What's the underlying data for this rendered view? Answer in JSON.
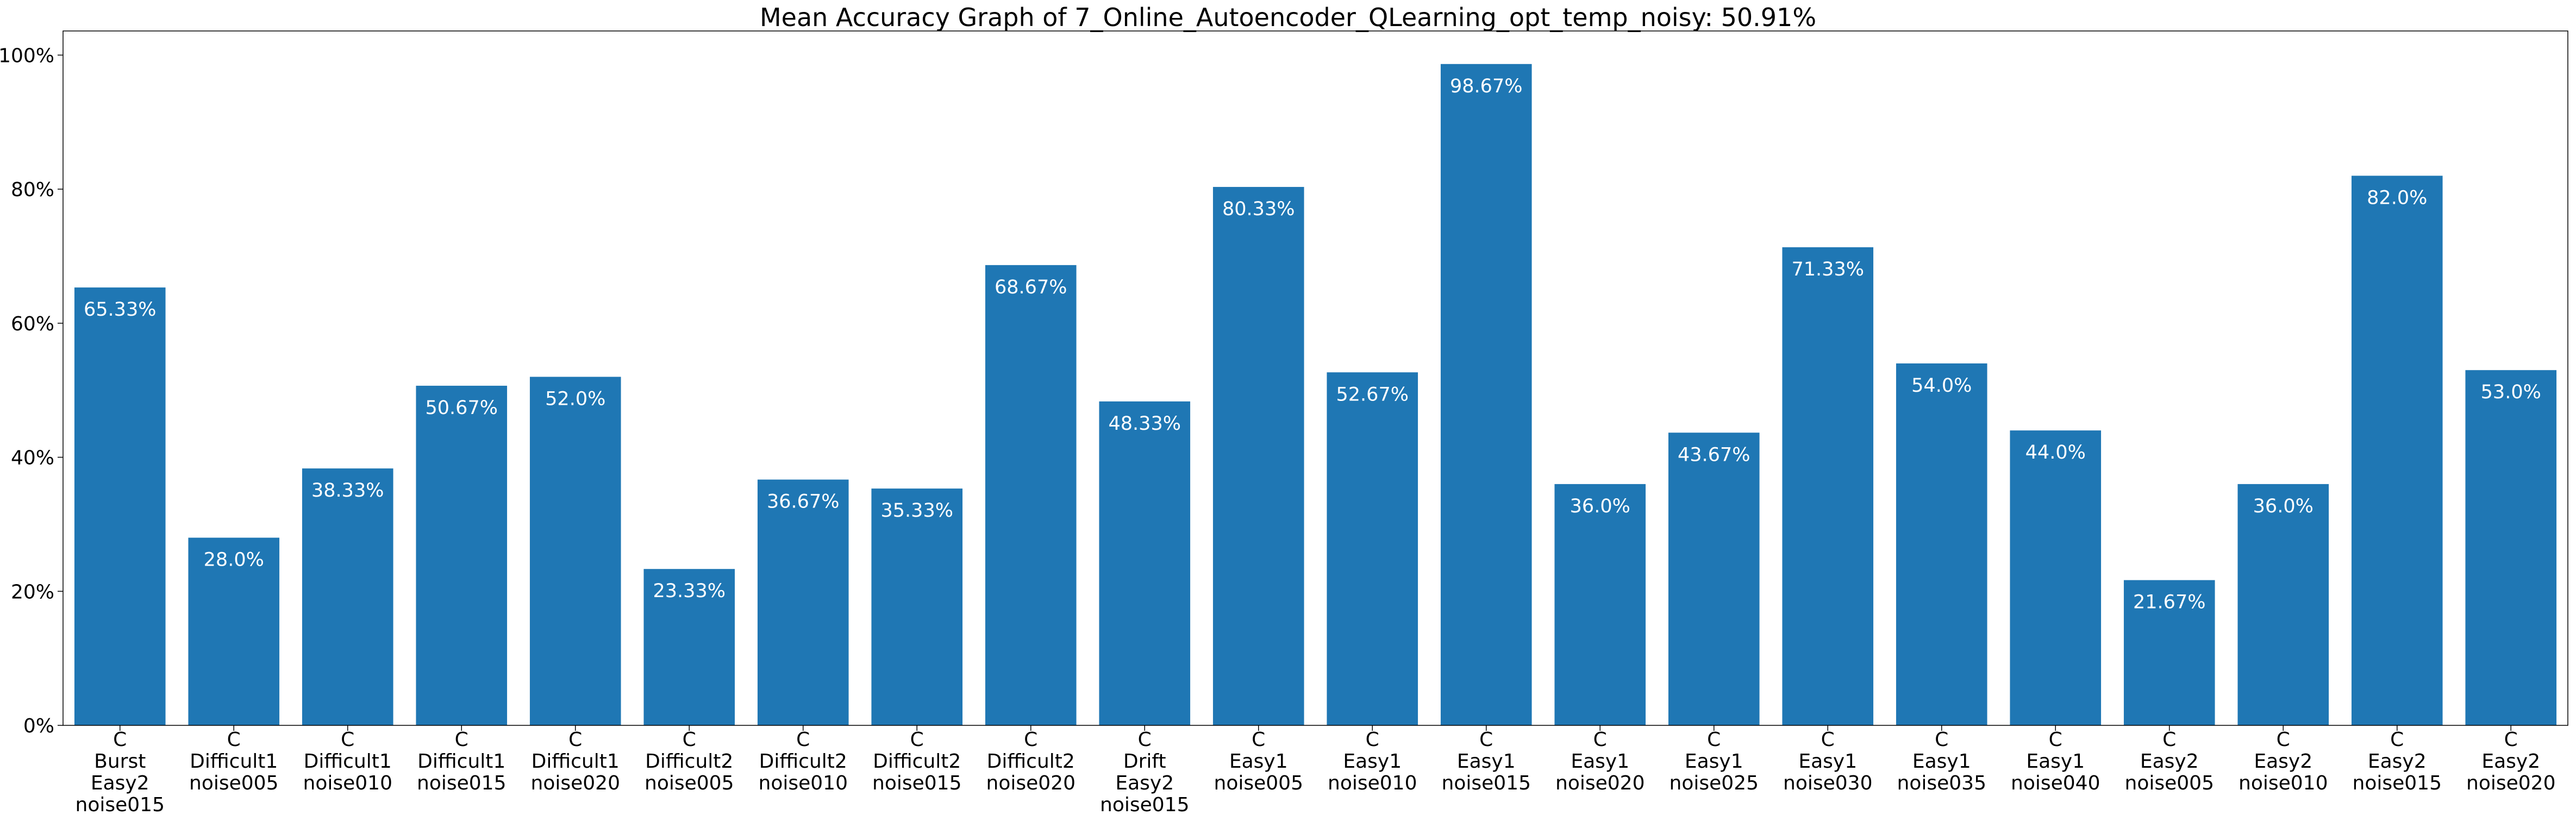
{
  "chart_data": {
    "type": "bar",
    "title": "Mean Accuracy Graph of 7_Online_Autoencoder_QLearning_opt_temp_noisy: 50.91%",
    "xlabel": "",
    "ylabel": "",
    "ylim": [
      0,
      100
    ],
    "y_ticks": [
      0,
      20,
      40,
      60,
      80,
      100
    ],
    "y_tick_labels": [
      "0%",
      "20%",
      "40%",
      "60%",
      "80%",
      "100%"
    ],
    "grid": false,
    "bar_color": "#1f77b4",
    "categories": [
      [
        "C",
        "Burst",
        "Easy2",
        "noise015"
      ],
      [
        "C",
        "Difficult1",
        "noise005"
      ],
      [
        "C",
        "Difficult1",
        "noise010"
      ],
      [
        "C",
        "Difficult1",
        "noise015"
      ],
      [
        "C",
        "Difficult1",
        "noise020"
      ],
      [
        "C",
        "Difficult2",
        "noise005"
      ],
      [
        "C",
        "Difficult2",
        "noise010"
      ],
      [
        "C",
        "Difficult2",
        "noise015"
      ],
      [
        "C",
        "Difficult2",
        "noise020"
      ],
      [
        "C",
        "Drift",
        "Easy2",
        "noise015"
      ],
      [
        "C",
        "Easy1",
        "noise005"
      ],
      [
        "C",
        "Easy1",
        "noise010"
      ],
      [
        "C",
        "Easy1",
        "noise015"
      ],
      [
        "C",
        "Easy1",
        "noise020"
      ],
      [
        "C",
        "Easy1",
        "noise025"
      ],
      [
        "C",
        "Easy1",
        "noise030"
      ],
      [
        "C",
        "Easy1",
        "noise035"
      ],
      [
        "C",
        "Easy1",
        "noise040"
      ],
      [
        "C",
        "Easy2",
        "noise005"
      ],
      [
        "C",
        "Easy2",
        "noise010"
      ],
      [
        "C",
        "Easy2",
        "noise015"
      ],
      [
        "C",
        "Easy2",
        "noise020"
      ]
    ],
    "values": [
      65.33,
      28.0,
      38.33,
      50.67,
      52.0,
      23.33,
      36.67,
      35.33,
      68.67,
      48.33,
      80.33,
      52.67,
      98.67,
      36.0,
      43.67,
      71.33,
      54.0,
      44.0,
      21.67,
      36.0,
      82.0,
      53.0
    ],
    "data_labels": [
      "65.33%",
      "28.0%",
      "38.33%",
      "50.67%",
      "52.0%",
      "23.33%",
      "36.67%",
      "35.33%",
      "68.67%",
      "48.33%",
      "80.33%",
      "52.67%",
      "98.67%",
      "36.0%",
      "43.67%",
      "71.33%",
      "54.0%",
      "44.0%",
      "21.67%",
      "36.0%",
      "82.0%",
      "53.0%"
    ]
  }
}
